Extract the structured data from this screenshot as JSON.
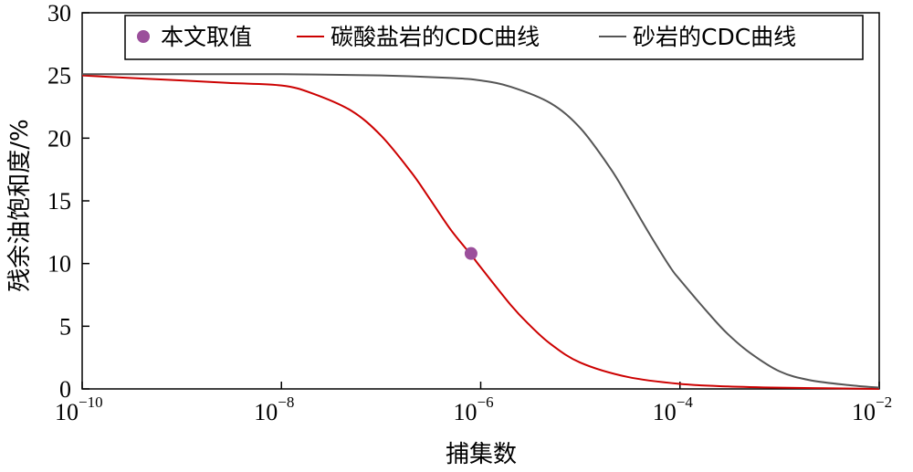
{
  "chart_data": {
    "type": "line",
    "xlabel": "捕集数",
    "ylabel": "残余油饱和度/%",
    "x_scale": "log",
    "xlim": [
      1e-10,
      0.01
    ],
    "ylim": [
      0,
      30
    ],
    "x_ticks": [
      {
        "base": "10",
        "exp": "−10",
        "value": 1e-10
      },
      {
        "base": "10",
        "exp": "−8",
        "value": 1e-08
      },
      {
        "base": "10",
        "exp": "−6",
        "value": 1e-06
      },
      {
        "base": "10",
        "exp": "−4",
        "value": 0.0001
      },
      {
        "base": "10",
        "exp": "−2",
        "value": 0.01
      }
    ],
    "y_ticks": [
      "0",
      "5",
      "10",
      "15",
      "20",
      "25",
      "30"
    ],
    "grid": false,
    "legend_position": "top",
    "series": [
      {
        "name": "碳酸盐岩的CDC曲线",
        "kind": "line",
        "color": "#cc0000",
        "x": [
          1e-10,
          3e-10,
          1e-09,
          3e-09,
          1e-08,
          2e-08,
          5e-08,
          1e-07,
          2e-07,
          3e-07,
          5e-07,
          8e-07,
          1e-06,
          2e-06,
          3e-06,
          5e-06,
          1e-05,
          3e-05,
          0.0001,
          0.0003,
          0.001,
          0.01
        ],
        "y": [
          25.0,
          24.8,
          24.6,
          24.4,
          24.2,
          23.6,
          22.2,
          20.2,
          17.3,
          15.3,
          12.7,
          10.7,
          9.7,
          6.7,
          5.2,
          3.6,
          2.1,
          0.95,
          0.4,
          0.2,
          0.1,
          0.0
        ]
      },
      {
        "name": "砂岩的CDC曲线",
        "kind": "line",
        "color": "#555555",
        "x": [
          1e-10,
          1e-09,
          1e-08,
          1e-07,
          5e-07,
          1e-06,
          2e-06,
          5e-06,
          1e-05,
          2e-05,
          3e-05,
          5e-05,
          8e-05,
          0.0001,
          0.0002,
          0.0003,
          0.0005,
          0.001,
          0.002,
          0.005,
          0.01
        ],
        "y": [
          25.1,
          25.1,
          25.1,
          25.0,
          24.8,
          24.6,
          24.1,
          22.8,
          20.8,
          17.6,
          15.3,
          12.3,
          9.7,
          8.7,
          5.9,
          4.4,
          2.9,
          1.4,
          0.7,
          0.3,
          0.1
        ]
      },
      {
        "name": "本文取值",
        "kind": "point",
        "color": "#9b4f9b",
        "x": [
          8e-07
        ],
        "y": [
          10.8
        ]
      }
    ]
  }
}
